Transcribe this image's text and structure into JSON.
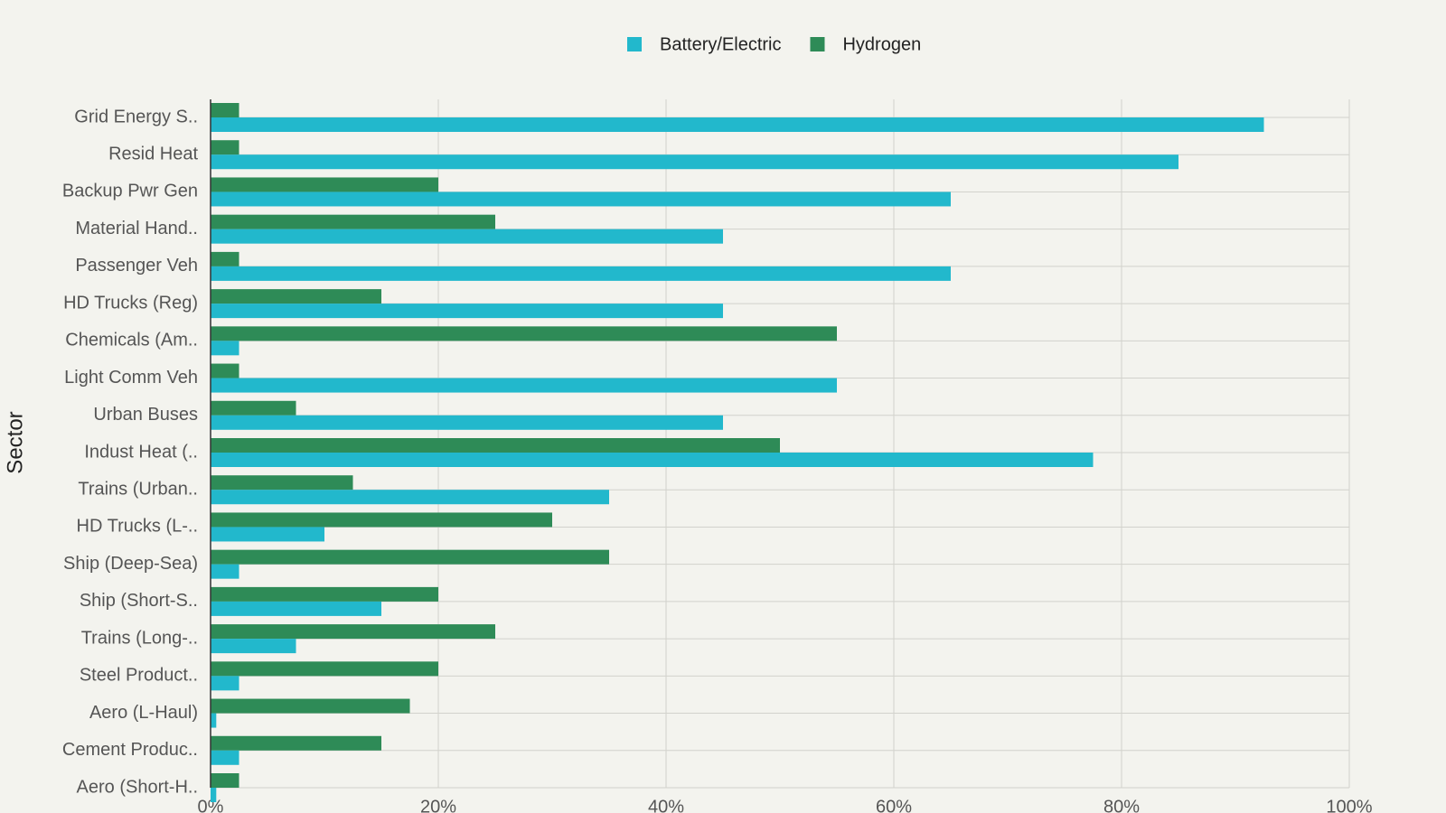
{
  "chart_data": {
    "type": "bar",
    "orientation": "horizontal",
    "y_label": "Sector",
    "categories": [
      "Grid Energy S..",
      "Resid Heat",
      "Backup Pwr Gen",
      "Material Hand..",
      "Passenger Veh",
      "HD Trucks (Reg)",
      "Chemicals (Am..",
      "Light Comm Veh",
      "Urban Buses",
      "Indust Heat (..",
      "Trains (Urban..",
      "HD Trucks (L-..",
      "Ship (Deep-Sea)",
      "Ship (Short-S..",
      "Trains (Long-..",
      "Steel Product..",
      "Aero (L-Haul)",
      "Cement Produc..",
      "Aero (Short-H.."
    ],
    "series": [
      {
        "name": "Battery/Electric",
        "color": "#22b8cc",
        "values": [
          92.5,
          85,
          65,
          45,
          65,
          45,
          2.5,
          55,
          45,
          77.5,
          35,
          10,
          2.5,
          15,
          7.5,
          2.5,
          0.5,
          2.5,
          0.5
        ]
      },
      {
        "name": "Hydrogen",
        "color": "#2e8b57",
        "values": [
          2.5,
          2.5,
          20,
          25,
          2.5,
          15,
          55,
          2.5,
          7.5,
          50,
          12.5,
          30,
          35,
          20,
          25,
          20,
          17.5,
          15,
          2.5
        ]
      }
    ],
    "xlim": [
      0,
      100
    ],
    "xticks": [
      {
        "value": 0,
        "label": "0%"
      },
      {
        "value": 20,
        "label": "20%"
      },
      {
        "value": 40,
        "label": "40%"
      },
      {
        "value": 60,
        "label": "60%"
      },
      {
        "value": 80,
        "label": "80%"
      },
      {
        "value": 100,
        "label": "100%"
      }
    ],
    "grid": true,
    "legend": "top"
  }
}
